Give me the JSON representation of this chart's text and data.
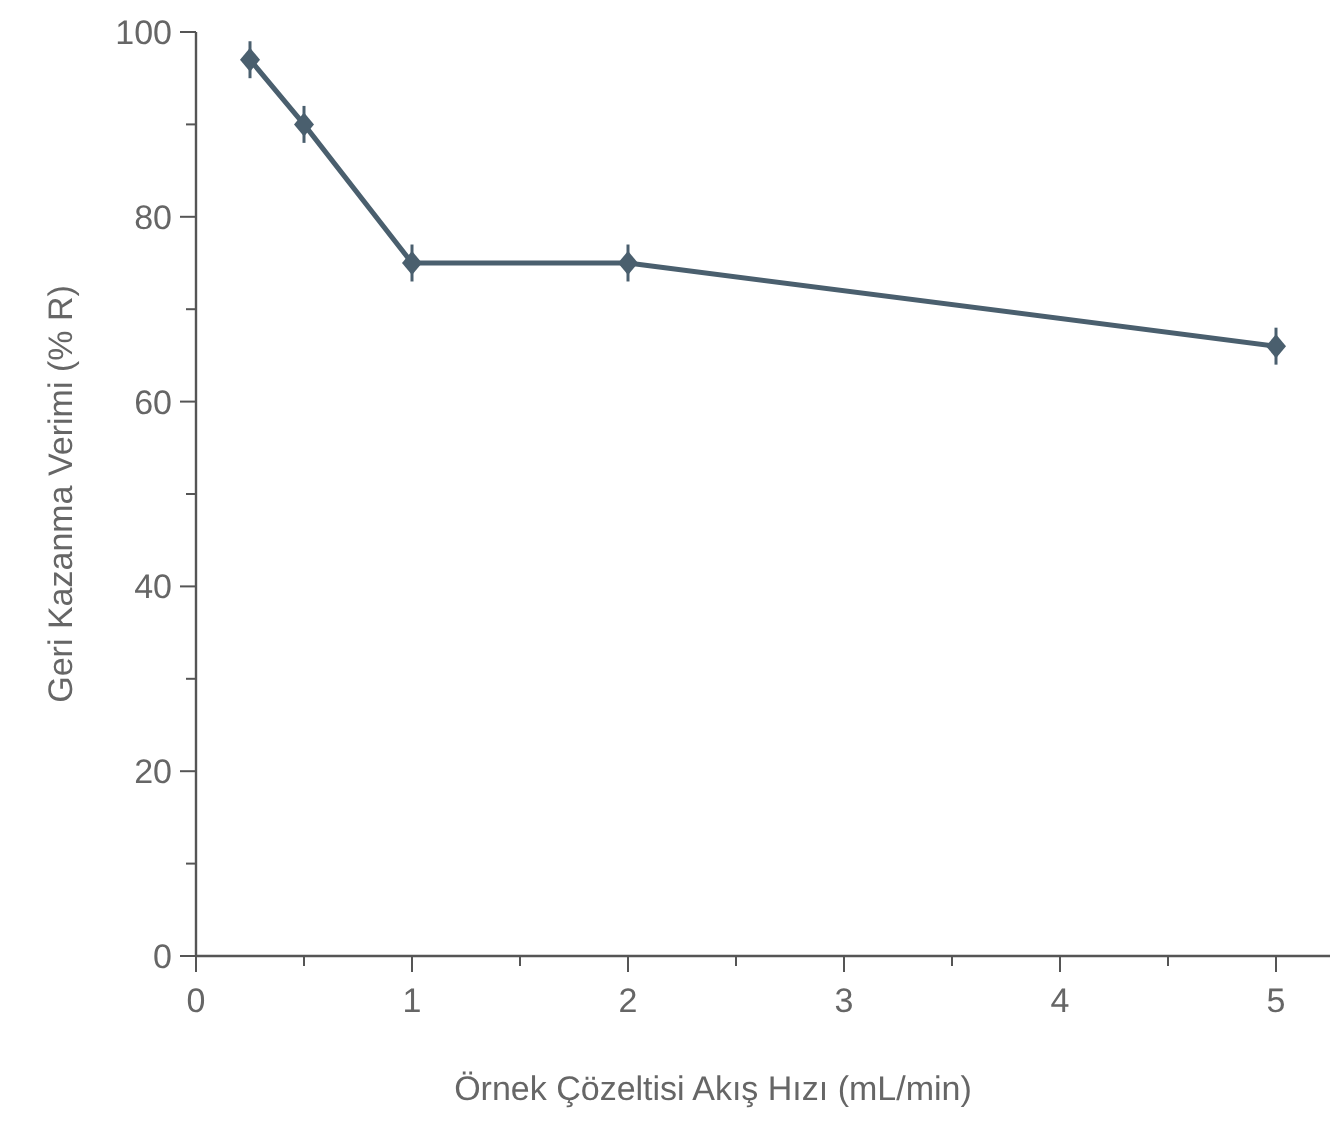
{
  "chart_data": {
    "type": "line",
    "xlabel": "Örnek Çözeltisi Akış Hızı (mL/min)",
    "ylabel": "Geri Kazanma Verimi (% R)",
    "x": [
      0.25,
      0.5,
      1,
      2,
      5
    ],
    "series": [
      {
        "color": "#4a5f6e",
        "values": [
          97,
          90,
          75,
          75,
          66
        ],
        "errors": [
          2,
          2,
          2,
          2,
          2
        ]
      }
    ],
    "xlim": [
      0,
      5.25
    ],
    "ylim": [
      0,
      100
    ],
    "xticks": [
      0,
      {
        "value": 0.5,
        "label": null
      },
      1,
      {
        "value": 1.5,
        "label": null
      },
      2,
      {
        "value": 2.5,
        "label": null
      },
      3,
      {
        "value": 3.5,
        "label": null
      },
      4,
      {
        "value": 4.5,
        "label": null
      },
      5
    ],
    "yticks": [
      0,
      {
        "value": 10,
        "label": null
      },
      20,
      {
        "value": 30,
        "label": null
      },
      40,
      {
        "value": 50,
        "label": null
      },
      60,
      {
        "value": 70,
        "label": null
      },
      80,
      {
        "value": 90,
        "label": null
      },
      100
    ],
    "grid": false,
    "marker": "diamond",
    "line_style": "solid"
  }
}
